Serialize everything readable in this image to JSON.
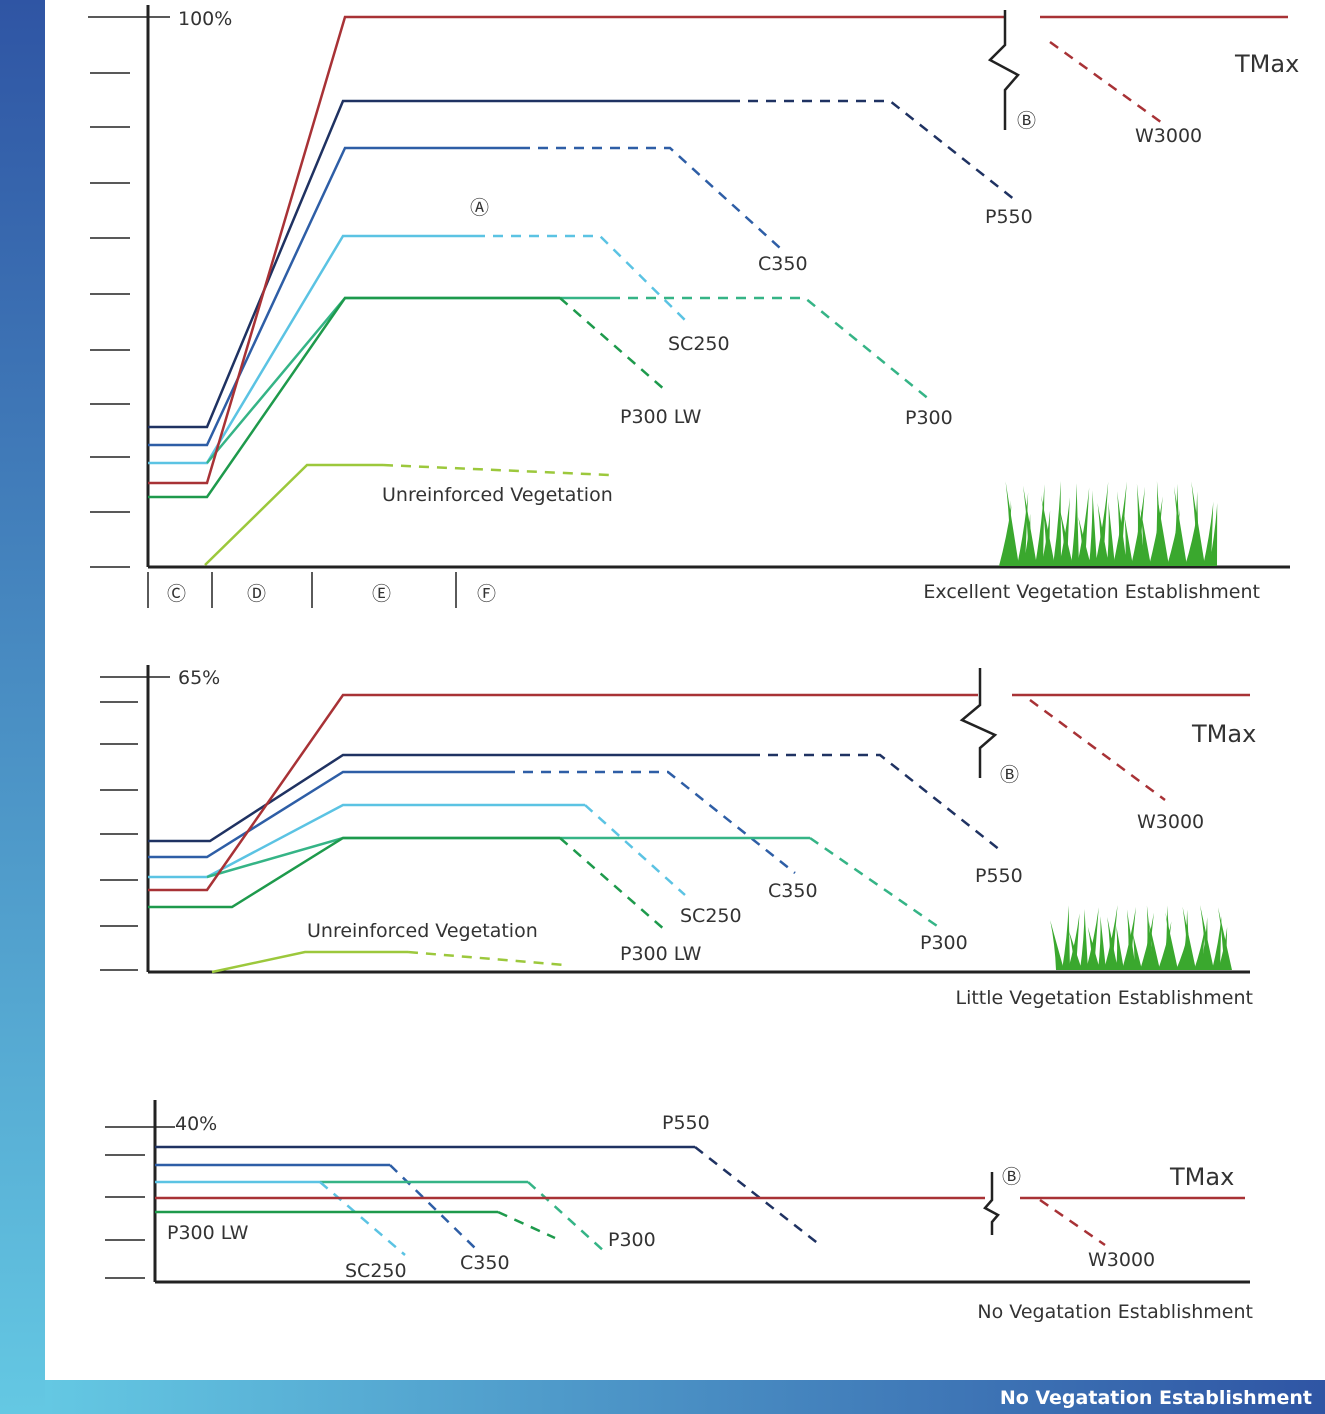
{
  "panels": [
    {
      "top_label": "100%",
      "caption": "Excellent Vegetation Establishment",
      "labels": {
        "tmax": "TMax",
        "w3000": "W3000",
        "p550": "P550",
        "c350": "C350",
        "sc250": "SC250",
        "p300lw": "P300 LW",
        "p300": "P300",
        "unreinforced": "Unreinforced Vegetation",
        "a": "Ⓐ",
        "b": "Ⓑ",
        "c": "Ⓒ",
        "d": "Ⓓ",
        "e": "Ⓔ",
        "f": "Ⓕ"
      }
    },
    {
      "top_label": "65%",
      "caption": "Little Vegetation Establishment",
      "labels": {
        "tmax": "TMax",
        "w3000": "W3000",
        "p550": "P550",
        "c350": "C350",
        "sc250": "SC250",
        "p300lw": "P300 LW",
        "p300": "P300",
        "unreinforced": "Unreinforced Vegetation",
        "b": "Ⓑ"
      }
    },
    {
      "top_label": "40%",
      "caption": "No Vegatation Establishment",
      "labels": {
        "tmax": "TMax",
        "w3000": "W3000",
        "p550": "P550",
        "c350": "C350",
        "sc250": "SC250",
        "p300lw": "P300 LW",
        "p300": "P300",
        "b": "Ⓑ"
      }
    }
  ],
  "footer": "No Vegatation Establishment"
}
